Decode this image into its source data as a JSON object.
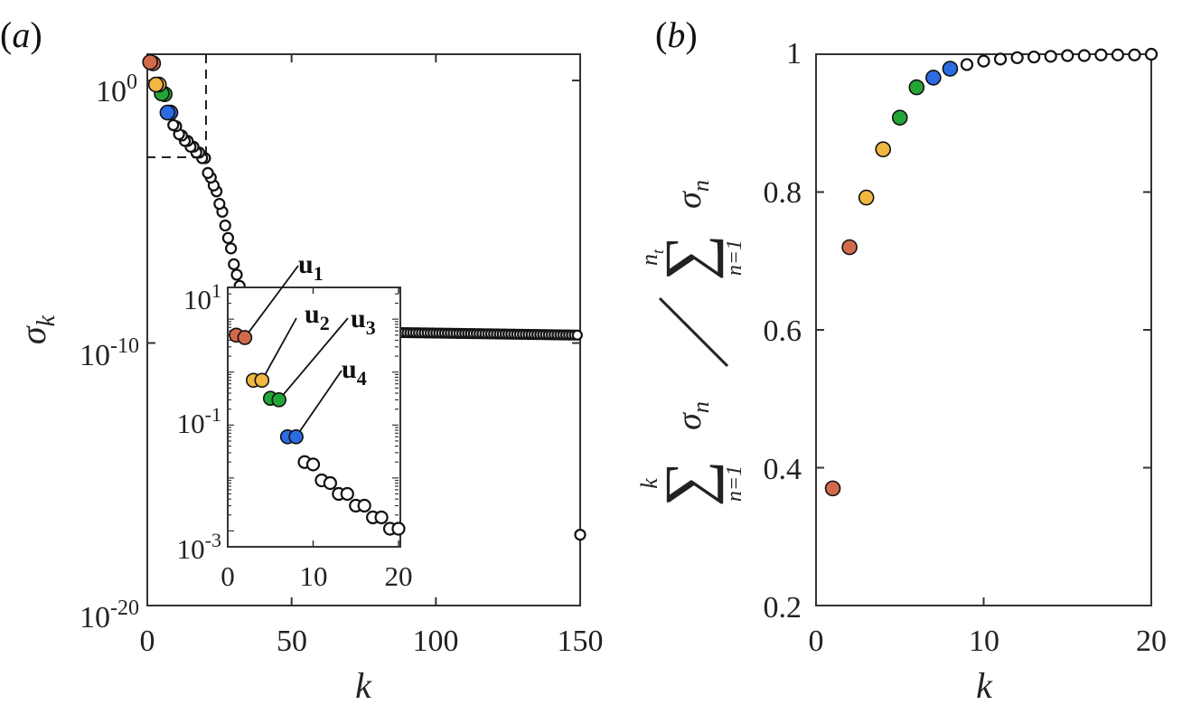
{
  "colors": {
    "mode1": "#D26A4D",
    "mode2": "#F0B840",
    "mode3": "#23A637",
    "mode4": "#2D6BE3",
    "axis": "#333333",
    "hollow": "#111111"
  },
  "panel_labels": {
    "a_open": "(",
    "a_letter": "a",
    "a_close": ")",
    "b_open": "(",
    "b_letter": "b",
    "b_close": ")"
  },
  "panel_a": {
    "ylabel_sym": "σ",
    "ylabel_sub": "k",
    "xlabel": "k",
    "xticks": [
      "0",
      "50",
      "100",
      "150"
    ],
    "yticks": [
      {
        "base": "10",
        "exp": "0"
      },
      {
        "base": "10",
        "exp": "-10"
      },
      {
        "base": "10",
        "exp": "-20"
      }
    ]
  },
  "panel_a_inset": {
    "xticks": [
      "0",
      "10",
      "20"
    ],
    "yticks": [
      {
        "base": "10",
        "exp": "1"
      },
      {
        "base": "10",
        "exp": "-1"
      },
      {
        "base": "10",
        "exp": "-3"
      }
    ],
    "labels": [
      {
        "sym": "u",
        "sub": "1"
      },
      {
        "sym": "u",
        "sub": "2"
      },
      {
        "sym": "u",
        "sub": "3"
      },
      {
        "sym": "u",
        "sub": "4"
      }
    ]
  },
  "panel_b": {
    "xlabel": "k",
    "xticks": [
      "0",
      "10",
      "20"
    ],
    "yticks": [
      "1",
      "0.8",
      "0.6",
      "0.4",
      "0.2"
    ],
    "ylabel": {
      "num_upper": "k",
      "num_sum": "∑",
      "num_term": "σ",
      "num_term_sub": "n",
      "num_lower": "n=1",
      "den_upper": "n",
      "den_upper_sub": "t",
      "den_sum": "∑",
      "den_term": "σ",
      "den_term_sub": "n",
      "den_lower": "n=1"
    }
  },
  "chart_data": [
    {
      "type": "scatter",
      "title": "",
      "xlabel": "k",
      "ylabel": "σ_k",
      "xlim": [
        0,
        150
      ],
      "ylim": [
        1e-20,
        10
      ],
      "yscale": "log",
      "series": [
        {
          "name": "u1",
          "x": [
            1,
            2
          ],
          "y": [
            5.0,
            4.5
          ]
        },
        {
          "name": "u2",
          "x": [
            3,
            4
          ],
          "y": [
            0.7,
            0.7
          ]
        },
        {
          "name": "u3",
          "x": [
            5,
            6
          ],
          "y": [
            0.32,
            0.3
          ]
        },
        {
          "name": "u4",
          "x": [
            7,
            8
          ],
          "y": [
            0.06,
            0.06
          ]
        },
        {
          "x": [
            9,
            10,
            11,
            12,
            13,
            14,
            15,
            16,
            17,
            18,
            19,
            20,
            21,
            22,
            23,
            24,
            25,
            26,
            27,
            28,
            29,
            30,
            31,
            32,
            33,
            34,
            35,
            36,
            150
          ],
          "y": [
            0.02,
            0.018,
            0.009,
            0.008,
            0.005,
            0.005,
            0.003,
            0.003,
            0.0018,
            0.0018,
            0.0011,
            0.0011,
            0.0003,
            0.0002,
            0.0001,
            6e-05,
            2e-05,
            1e-05,
            3e-06,
            1e-06,
            4e-07,
            1e-07,
            4e-08,
            1.5e-08,
            5e-09,
            2e-09,
            5e-10,
            4e-10,
            5e-18
          ]
        },
        {
          "x_range": [
            37,
            149
          ],
          "y_start": 3e-10,
          "y_end": 2e-10
        }
      ],
      "annotations": [
        "dashed box marks inset region k≤20, σ≥1e-3"
      ]
    },
    {
      "type": "scatter",
      "title": "",
      "xlabel": "k",
      "ylabel": "∑_{n=1}^{k} σ_n / ∑_{n=1}^{n_t} σ_n",
      "xlim": [
        0,
        20
      ],
      "ylim": [
        0.2,
        1.0
      ],
      "series": [
        {
          "name": "u1",
          "x": [
            1,
            2
          ],
          "y": [
            0.37,
            0.72
          ]
        },
        {
          "name": "u2",
          "x": [
            3,
            4
          ],
          "y": [
            0.792,
            0.862
          ]
        },
        {
          "name": "u3",
          "x": [
            5,
            6
          ],
          "y": [
            0.908,
            0.952
          ]
        },
        {
          "name": "u4",
          "x": [
            7,
            8
          ],
          "y": [
            0.966,
            0.979
          ]
        },
        {
          "x": [
            9,
            10,
            11,
            12,
            13,
            14,
            15,
            16,
            17,
            18,
            19,
            20
          ],
          "y": [
            0.985,
            0.99,
            0.993,
            0.995,
            0.996,
            0.997,
            0.998,
            0.998,
            0.999,
            0.999,
            0.999,
            1.0
          ]
        }
      ]
    }
  ]
}
